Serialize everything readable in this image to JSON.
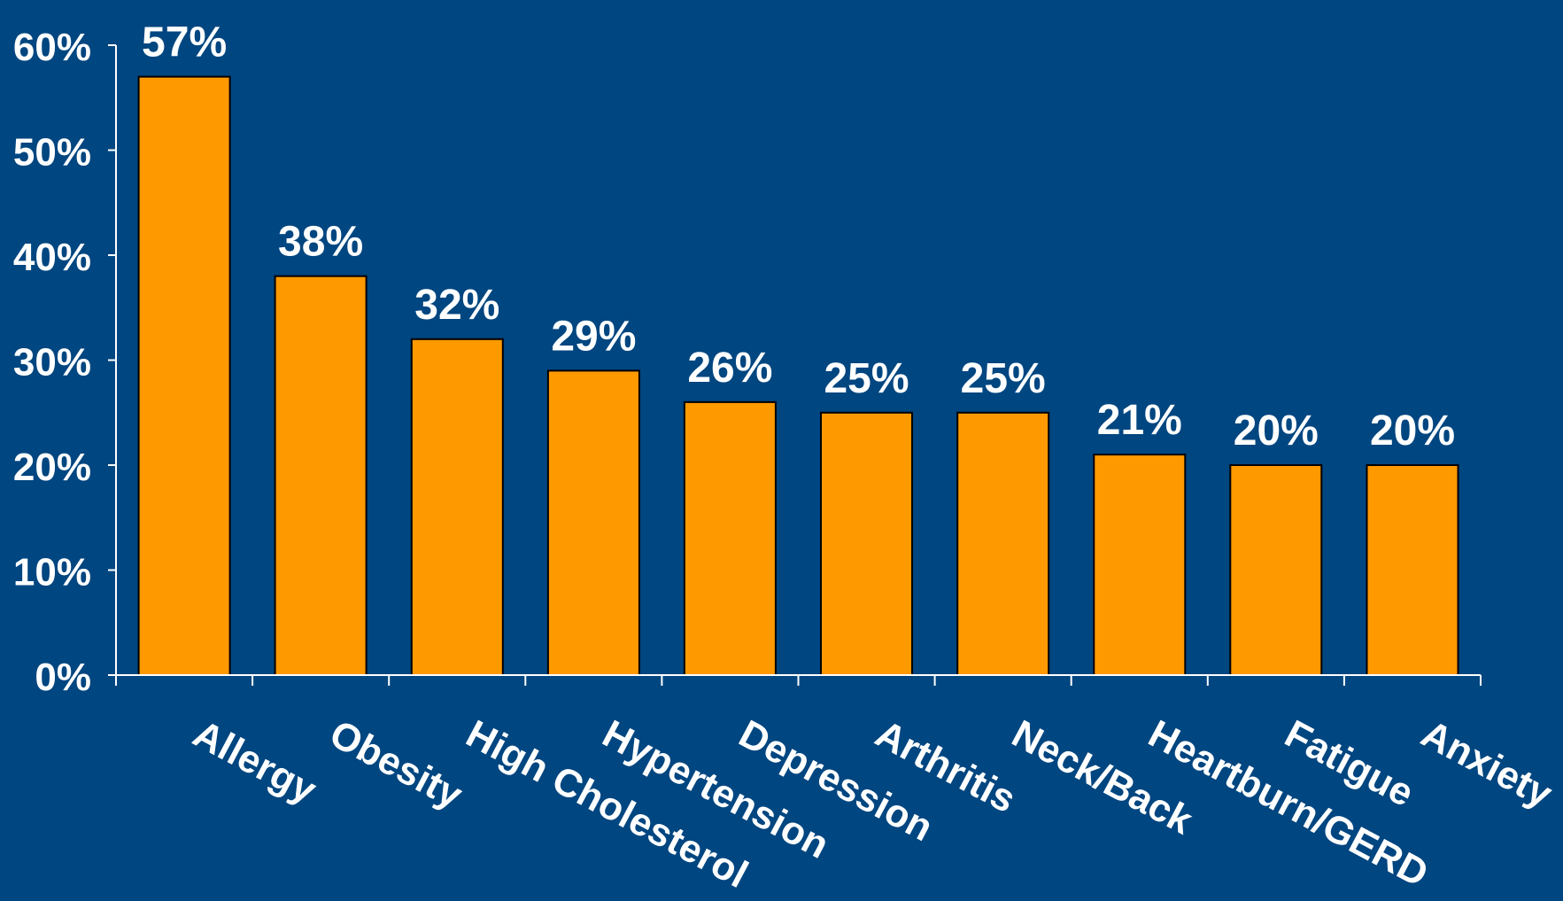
{
  "chart_data": {
    "type": "bar",
    "categories": [
      "Allergy",
      "Obesity",
      "High Cholesterol",
      "Hypertension",
      "Depression",
      "Arthritis",
      "Neck/Back",
      "Heartburn/GERD",
      "Fatigue",
      "Anxiety"
    ],
    "values": [
      57,
      38,
      32,
      29,
      26,
      25,
      25,
      21,
      20,
      20
    ],
    "value_labels": [
      "57%",
      "38%",
      "32%",
      "29%",
      "26%",
      "25%",
      "25%",
      "21%",
      "20%",
      "20%"
    ],
    "ylim": [
      0,
      60
    ],
    "y_ticks": [
      0,
      10,
      20,
      30,
      40,
      50,
      60
    ],
    "y_tick_labels": [
      "0%",
      "10%",
      "20%",
      "30%",
      "40%",
      "50%",
      "60%"
    ],
    "title": "",
    "xlabel": "",
    "ylabel": "",
    "grid": false,
    "legend": "none",
    "colors": {
      "background": "#004680",
      "bar_fill": "#FF9900",
      "bar_stroke": "#000000",
      "axis": "#FFFFFF",
      "text": "#FFFFFF"
    }
  }
}
